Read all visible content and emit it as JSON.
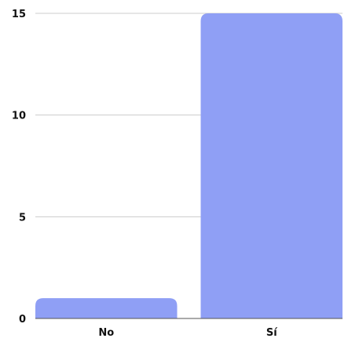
{
  "chart_data": {
    "type": "bar",
    "categories": [
      "No",
      "Sí"
    ],
    "values": [
      1,
      15
    ],
    "yticks": [
      "0",
      "5",
      "10",
      "15"
    ],
    "ylim": [
      0,
      15
    ],
    "grid": true,
    "bar_color": "#8f9ff5",
    "grid_color": "#cccccc",
    "axis_color": "#555555"
  }
}
